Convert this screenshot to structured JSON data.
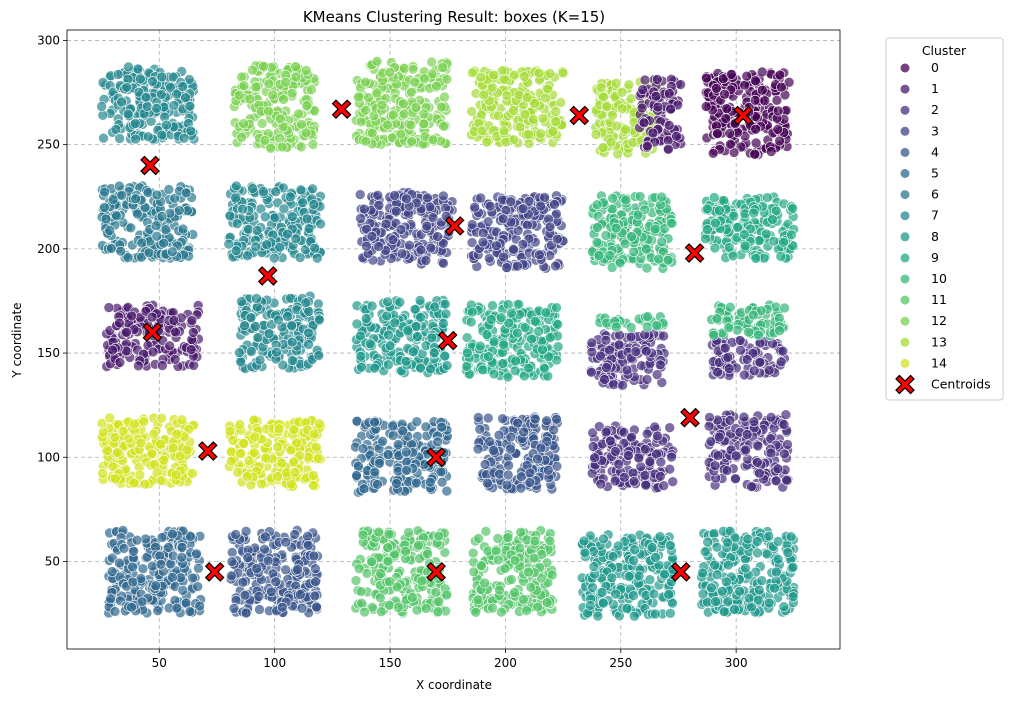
{
  "chart_data": {
    "type": "scatter",
    "title": "KMeans Clustering Result: boxes (K=15)",
    "xlabel": "X coordinate",
    "ylabel": "Y coordinate",
    "xlim": [
      10,
      345
    ],
    "ylim": [
      8,
      305
    ],
    "xticks": [
      50,
      100,
      150,
      200,
      250,
      300
    ],
    "yticks": [
      50,
      100,
      150,
      200,
      250,
      300
    ],
    "grid": true,
    "legend": {
      "title": "Cluster",
      "placement": "outside-right",
      "entries": [
        "0",
        "1",
        "2",
        "3",
        "4",
        "5",
        "6",
        "7",
        "8",
        "9",
        "10",
        "11",
        "12",
        "13",
        "14"
      ],
      "centroid_label": "Centroids"
    },
    "cluster_colors": [
      "#440154",
      "#481a6c",
      "#472f7d",
      "#414487",
      "#39568c",
      "#31688e",
      "#2a788e",
      "#23888e",
      "#1f988b",
      "#22a884",
      "#35b779",
      "#54c568",
      "#7ad151",
      "#a5db36",
      "#d2e21b"
    ],
    "centroid_color": "#ff0000",
    "boxes": [
      {
        "cx": 45,
        "cy": 270,
        "w": 40,
        "h": 35,
        "cluster": 7
      },
      {
        "cx": 100,
        "cy": 268,
        "w": 35,
        "h": 40,
        "cluster": 12
      },
      {
        "cx": 155,
        "cy": 270,
        "w": 40,
        "h": 40,
        "cluster": 12
      },
      {
        "cx": 205,
        "cy": 268,
        "w": 40,
        "h": 35,
        "cluster": 13
      },
      {
        "cx": 253,
        "cy": 263,
        "w": 28,
        "h": 35,
        "cluster": 13
      },
      {
        "cx": 267,
        "cy": 265,
        "w": 18,
        "h": 35,
        "cluster": 1
      },
      {
        "cx": 305,
        "cy": 265,
        "w": 36,
        "h": 40,
        "cluster": 0
      },
      {
        "cx": 45,
        "cy": 213,
        "w": 40,
        "h": 35,
        "cluster": 6
      },
      {
        "cx": 100,
        "cy": 213,
        "w": 40,
        "h": 35,
        "cluster": 7
      },
      {
        "cx": 157,
        "cy": 210,
        "w": 40,
        "h": 35,
        "cluster": 3
      },
      {
        "cx": 205,
        "cy": 208,
        "w": 40,
        "h": 35,
        "cluster": 3
      },
      {
        "cx": 255,
        "cy": 208,
        "w": 35,
        "h": 35,
        "cluster": 10
      },
      {
        "cx": 305,
        "cy": 210,
        "w": 40,
        "h": 30,
        "cluster": 9
      },
      {
        "cx": 47,
        "cy": 158,
        "w": 40,
        "h": 30,
        "cluster": 1
      },
      {
        "cx": 102,
        "cy": 160,
        "w": 35,
        "h": 35,
        "cluster": 7
      },
      {
        "cx": 155,
        "cy": 158,
        "w": 40,
        "h": 35,
        "cluster": 8
      },
      {
        "cx": 203,
        "cy": 156,
        "w": 40,
        "h": 35,
        "cluster": 9
      },
      {
        "cx": 253,
        "cy": 147,
        "w": 32,
        "h": 25,
        "cluster": 2
      },
      {
        "cx": 255,
        "cy": 165,
        "w": 30,
        "h": 6,
        "cluster": 10
      },
      {
        "cx": 305,
        "cy": 148,
        "w": 32,
        "h": 18,
        "cluster": 2
      },
      {
        "cx": 305,
        "cy": 166,
        "w": 32,
        "h": 16,
        "cluster": 10
      },
      {
        "cx": 45,
        "cy": 103,
        "w": 40,
        "h": 32,
        "cluster": 14
      },
      {
        "cx": 100,
        "cy": 102,
        "w": 40,
        "h": 32,
        "cluster": 14
      },
      {
        "cx": 155,
        "cy": 100,
        "w": 40,
        "h": 35,
        "cluster": 5
      },
      {
        "cx": 205,
        "cy": 102,
        "w": 35,
        "h": 35,
        "cluster": 4
      },
      {
        "cx": 255,
        "cy": 100,
        "w": 35,
        "h": 30,
        "cluster": 2
      },
      {
        "cx": 305,
        "cy": 103,
        "w": 35,
        "h": 35,
        "cluster": 2
      },
      {
        "cx": 48,
        "cy": 45,
        "w": 40,
        "h": 40,
        "cluster": 5
      },
      {
        "cx": 100,
        "cy": 45,
        "w": 38,
        "h": 40,
        "cluster": 4
      },
      {
        "cx": 155,
        "cy": 45,
        "w": 40,
        "h": 40,
        "cluster": 11
      },
      {
        "cx": 203,
        "cy": 45,
        "w": 35,
        "h": 40,
        "cluster": 11
      },
      {
        "cx": 253,
        "cy": 43,
        "w": 40,
        "h": 40,
        "cluster": 8
      },
      {
        "cx": 305,
        "cy": 45,
        "w": 40,
        "h": 40,
        "cluster": 8
      }
    ],
    "centroids": [
      {
        "x": 46,
        "y": 240
      },
      {
        "x": 47,
        "y": 160
      },
      {
        "x": 71,
        "y": 103
      },
      {
        "x": 74,
        "y": 45
      },
      {
        "x": 97,
        "y": 187
      },
      {
        "x": 129,
        "y": 267
      },
      {
        "x": 170,
        "y": 45
      },
      {
        "x": 170,
        "y": 100
      },
      {
        "x": 175,
        "y": 156
      },
      {
        "x": 178,
        "y": 211
      },
      {
        "x": 232,
        "y": 264
      },
      {
        "x": 276,
        "y": 45
      },
      {
        "x": 280,
        "y": 119
      },
      {
        "x": 282,
        "y": 198
      },
      {
        "x": 303,
        "y": 264
      }
    ]
  }
}
